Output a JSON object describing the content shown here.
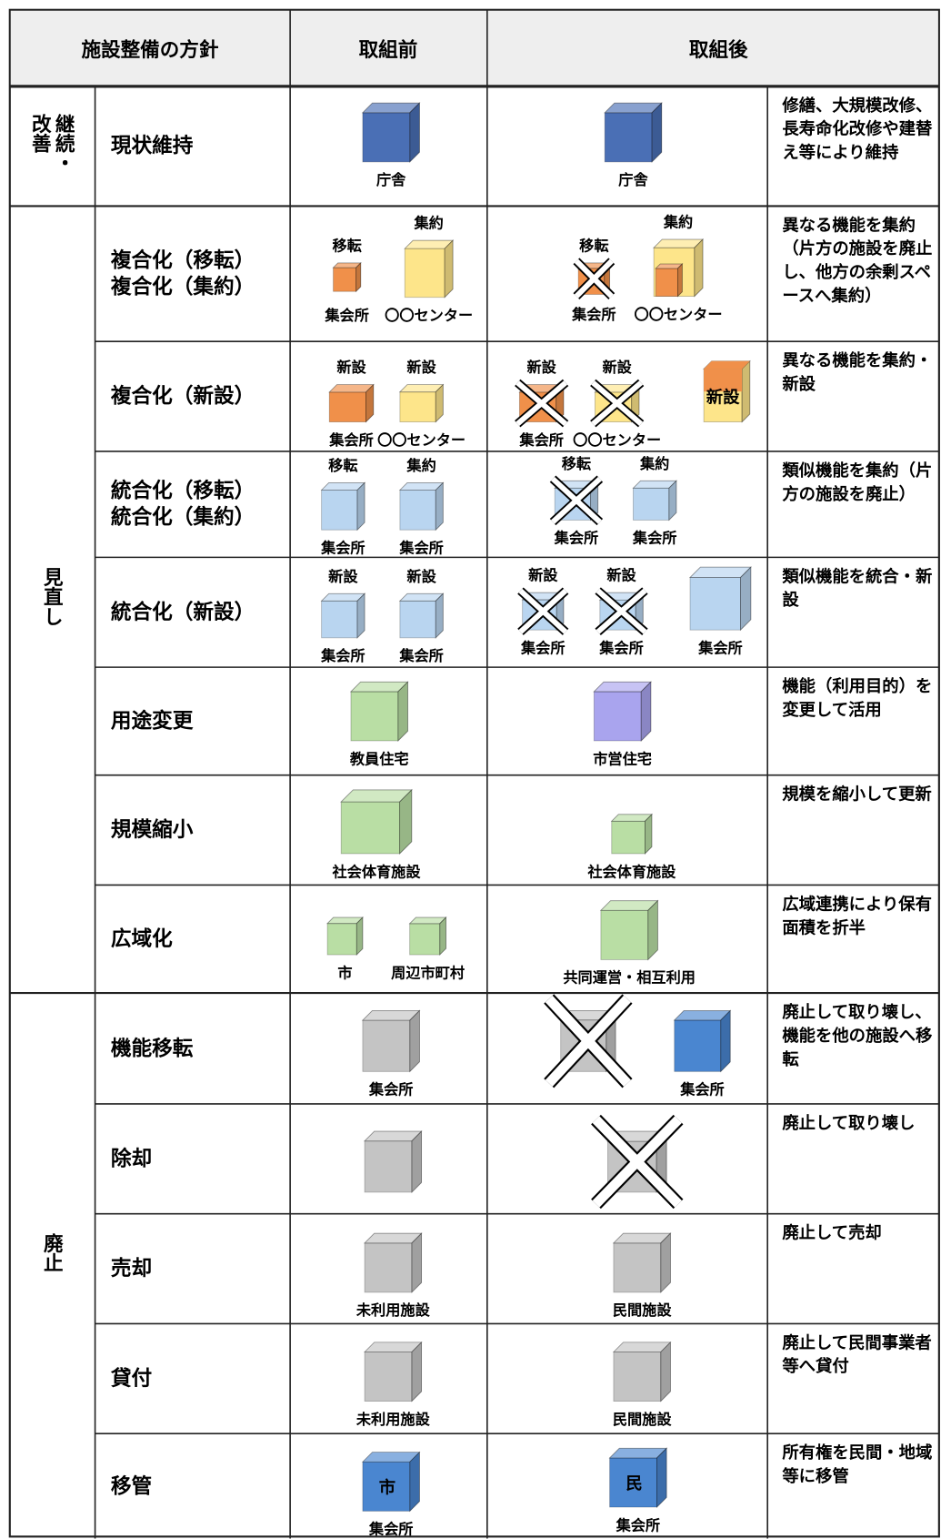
{
  "header": {
    "policy": "施設整備の方針",
    "before": "取組前",
    "after": "取組後"
  },
  "groups": [
    {
      "label": "継続・改善",
      "rows": [
        {
          "policy": [
            "現状維持"
          ],
          "before": [
            {
              "label": "庁舎",
              "color": "#4a6fb5"
            }
          ],
          "after": [
            {
              "label": "庁舎",
              "color": "#4a6fb5"
            }
          ],
          "description": "修繕、大規模改修、長寿命化改修や建替え等により維持"
        }
      ]
    },
    {
      "label": "見直し",
      "rows": [
        {
          "policy": [
            "複合化（移転）",
            "複合化（集約）"
          ],
          "before": [
            {
              "label": "集会所",
              "above": "移転",
              "color": "#f0904a"
            },
            {
              "label": "〇〇センター",
              "above": "集約",
              "color": "#fde58a"
            }
          ],
          "after": [
            {
              "label": "集会所",
              "above": "移転",
              "color": "#f0904a",
              "crossed": true
            },
            {
              "label": "〇〇センター",
              "above": "集約",
              "color": "#fde58a",
              "inner_color": "#f0904a"
            }
          ],
          "description": "異なる機能を集約（片方の施設を廃止し、他方の余剰スペースへ集約）"
        },
        {
          "policy": [
            "複合化（新設）"
          ],
          "before": [
            {
              "label": "集会所",
              "above": "新設",
              "color": "#f0904a"
            },
            {
              "label": "〇〇センター",
              "above": "新設",
              "color": "#fde58a"
            }
          ],
          "after": [
            {
              "label": "集会所",
              "above": "新設",
              "color": "#f0904a",
              "crossed": true
            },
            {
              "label": "〇〇センター",
              "above": "新設",
              "color": "#fde58a",
              "crossed": true
            },
            {
              "inside": "新設",
              "color": "#fde58a",
              "top_color": "#f0904a"
            }
          ],
          "description": "異なる機能を集約・新設"
        },
        {
          "policy": [
            "統合化（移転）",
            "統合化（集約）"
          ],
          "before": [
            {
              "label": "集会所",
              "above": "移転",
              "color": "#b9d5f0"
            },
            {
              "label": "集会所",
              "above": "集約",
              "color": "#b9d5f0"
            }
          ],
          "after": [
            {
              "label": "集会所",
              "above": "移転",
              "color": "#b9d5f0",
              "crossed": true
            },
            {
              "label": "集会所",
              "above": "集約",
              "color": "#b9d5f0"
            }
          ],
          "description": "類似機能を集約（片方の施設を廃止）"
        },
        {
          "policy": [
            "統合化（新設）"
          ],
          "before": [
            {
              "label": "集会所",
              "above": "新設",
              "color": "#b9d5f0"
            },
            {
              "label": "集会所",
              "above": "新設",
              "color": "#b9d5f0"
            }
          ],
          "after": [
            {
              "label": "集会所",
              "above": "新設",
              "color": "#b9d5f0",
              "crossed": true
            },
            {
              "label": "集会所",
              "above": "新設",
              "color": "#b9d5f0",
              "crossed": true
            },
            {
              "label": "集会所",
              "color": "#b9d5f0"
            }
          ],
          "description": "類似機能を統合・新設"
        },
        {
          "policy": [
            "用途変更"
          ],
          "before": [
            {
              "label": "教員住宅",
              "color": "#b9dea4"
            }
          ],
          "after": [
            {
              "label": "市営住宅",
              "color": "#a9a4ee"
            }
          ],
          "description": "機能（利用目的）を変更して活用"
        },
        {
          "policy": [
            "規模縮小"
          ],
          "before": [
            {
              "label": "社会体育施設",
              "color": "#b9dea4"
            }
          ],
          "after": [
            {
              "label": "社会体育施設",
              "color": "#b9dea4"
            }
          ],
          "description": "規模を縮小して更新"
        },
        {
          "policy": [
            "広域化"
          ],
          "before": [
            {
              "label": "市",
              "color": "#b9dea4"
            },
            {
              "label": "周辺市町村",
              "color": "#b9dea4"
            }
          ],
          "after": [
            {
              "label": "共同運営・相互利用",
              "color": "#b9dea4"
            }
          ],
          "description": "広域連携により保有面積を折半"
        }
      ]
    },
    {
      "label": "廃止",
      "rows": [
        {
          "policy": [
            "機能移転"
          ],
          "before": [
            {
              "label": "集会所",
              "color": "#c4c4c4"
            }
          ],
          "after": [
            {
              "color": "#c4c4c4",
              "crossed": true
            },
            {
              "label": "集会所",
              "color": "#4a86d0"
            }
          ],
          "description": "廃止して取り壊し、機能を他の施設へ移転"
        },
        {
          "policy": [
            "除却"
          ],
          "before": [
            {
              "color": "#c4c4c4"
            }
          ],
          "after": [
            {
              "color": "#c4c4c4",
              "crossed": true
            }
          ],
          "description": "廃止して取り壊し"
        },
        {
          "policy": [
            "売却"
          ],
          "before": [
            {
              "label": "未利用施設",
              "color": "#c4c4c4"
            }
          ],
          "after": [
            {
              "label": "民間施設",
              "color": "#c4c4c4"
            }
          ],
          "description": "廃止して売却"
        },
        {
          "policy": [
            "貸付"
          ],
          "before": [
            {
              "label": "未利用施設",
              "color": "#c4c4c4"
            }
          ],
          "after": [
            {
              "label": "民間施設",
              "color": "#c4c4c4"
            }
          ],
          "description": "廃止して民間事業者等へ貸付"
        },
        {
          "policy": [
            "移管"
          ],
          "before": [
            {
              "label": "集会所",
              "inside": "市",
              "color": "#4a86d0"
            }
          ],
          "after": [
            {
              "label": "集会所",
              "inside": "民",
              "color": "#4a86d0"
            }
          ],
          "description": "所有権を民間・地域等に移管"
        }
      ]
    }
  ]
}
